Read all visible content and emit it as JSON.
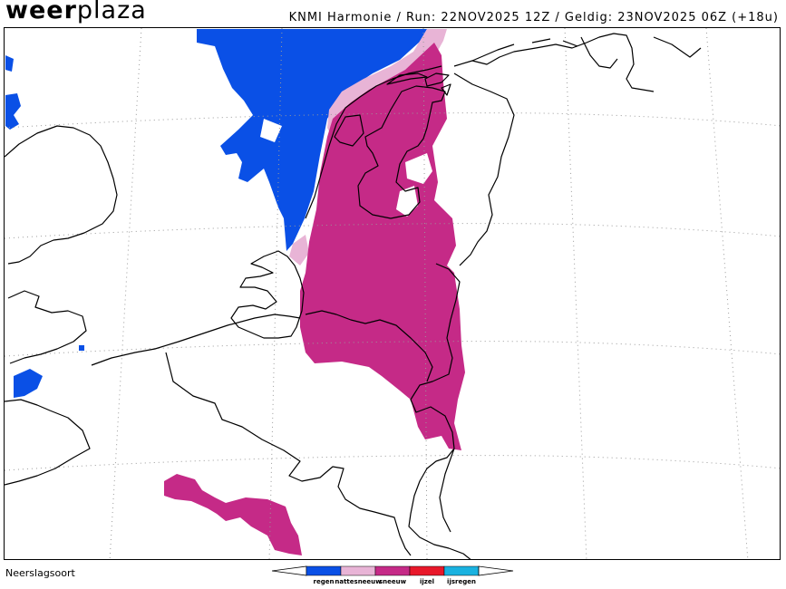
{
  "header": {
    "logo_bold": "weer",
    "logo_light": "plaza",
    "meta": "KNMI Harmonie / Run: 22NOV2025 12Z / Geldig: 23NOV2025 06Z (+18u)"
  },
  "legend": {
    "title": "Neerslagsoort",
    "items": [
      {
        "label": "regen",
        "color": "#0a50e6"
      },
      {
        "label": "nattesneeuw",
        "color": "#e8b4d6"
      },
      {
        "label": "sneeuw",
        "color": "#c52a87"
      },
      {
        "label": "ijzel",
        "color": "#e8182a"
      },
      {
        "label": "ijsregen",
        "color": "#1ab2e0"
      }
    ]
  },
  "colors": {
    "rain": "#0a50e6",
    "wet_snow": "#e8b4d6",
    "snow": "#c52a87",
    "coast": "#000000",
    "grid": "#9a9a9a"
  }
}
